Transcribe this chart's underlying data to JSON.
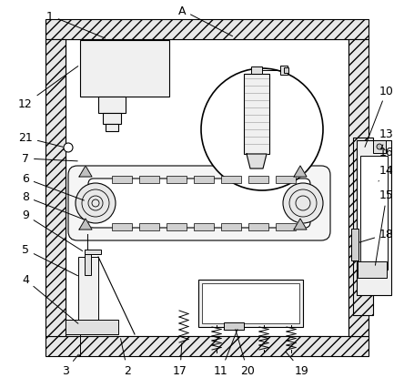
{
  "bg_color": "#ffffff",
  "line_color": "#000000",
  "hatch_color": "#000000",
  "light_gray": "#d0d0d0",
  "mid_gray": "#a0a0a0",
  "dark_gray": "#606060"
}
